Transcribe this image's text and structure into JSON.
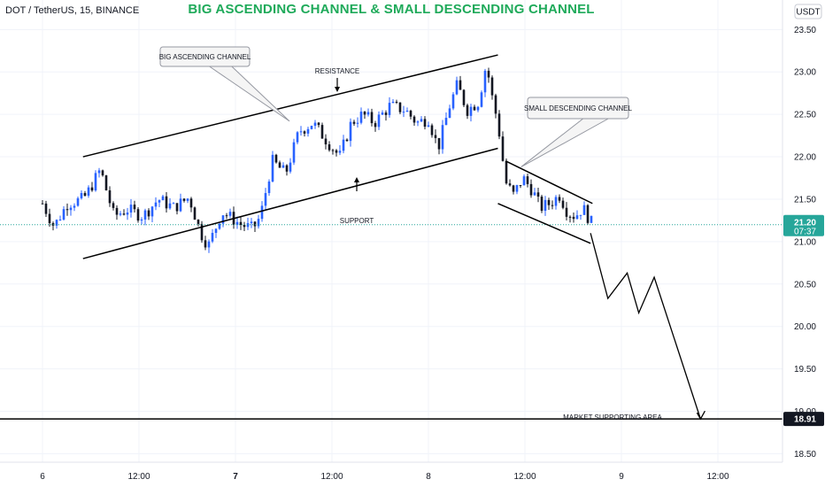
{
  "header": {
    "symbol": "DOT / TetherUS, 15, BINANCE",
    "title": "BIG ASCENDING CHANNEL & SMALL DESCENDING CHANNEL"
  },
  "colors": {
    "up": "#2962ff",
    "down": "#131722",
    "title": "#1faa5a",
    "last_price_line": "#26a69a",
    "last_price_bg": "#26a69a",
    "support_bg": "#131722"
  },
  "price_scale": {
    "currency": "USDT",
    "last_price": "21.20",
    "countdown": "07:37",
    "support_price": "18.91"
  },
  "annotations": {
    "big_channel": "BIG ASCENDING CHANNEL",
    "small_channel": "SMALL DESCENDING CHANNEL",
    "resistance": "RESISTANCE",
    "support": "SUPPORT",
    "market_support": "MARKET SUPPORTING AREA"
  },
  "chart_data": {
    "type": "candlestick",
    "y_ticks": [
      "23.50",
      "23.00",
      "22.50",
      "22.00",
      "21.50",
      "21.00",
      "20.50",
      "20.00",
      "19.50",
      "19.00",
      "18.50"
    ],
    "x_ticks": [
      "6",
      "12:00",
      "7",
      "12:00",
      "8",
      "12:00",
      "9",
      "12:00"
    ],
    "ylim": [
      18.4,
      23.66
    ],
    "grid": true,
    "last_price": 21.2,
    "market_support_level": 18.91,
    "big_ascending_channel": {
      "upper": [
        {
          "t": 0.21,
          "p": 22.0
        },
        {
          "t": 2.36,
          "p": 23.2
        }
      ],
      "lower": [
        {
          "t": 0.21,
          "p": 20.8
        },
        {
          "t": 2.36,
          "p": 22.1
        }
      ]
    },
    "small_descending_channel": {
      "upper": [
        {
          "t": 2.4,
          "p": 21.95
        },
        {
          "t": 2.85,
          "p": 21.45
        }
      ],
      "lower": [
        {
          "t": 2.36,
          "p": 21.45
        },
        {
          "t": 2.84,
          "p": 20.98
        }
      ]
    },
    "projection": [
      {
        "t": 2.84,
        "p": 21.1
      },
      {
        "t": 2.93,
        "p": 20.33
      },
      {
        "t": 3.03,
        "p": 20.63
      },
      {
        "t": 3.09,
        "p": 20.16
      },
      {
        "t": 3.17,
        "p": 20.58
      },
      {
        "t": 3.41,
        "p": 18.91
      }
    ],
    "price_path": [
      {
        "t": 0.0,
        "p": 21.45
      },
      {
        "t": 0.06,
        "p": 21.18
      },
      {
        "t": 0.13,
        "p": 21.45
      },
      {
        "t": 0.21,
        "p": 21.5
      },
      {
        "t": 0.24,
        "p": 21.6
      },
      {
        "t": 0.3,
        "p": 21.85
      },
      {
        "t": 0.37,
        "p": 21.3
      },
      {
        "t": 0.44,
        "p": 21.38
      },
      {
        "t": 0.52,
        "p": 21.3
      },
      {
        "t": 0.6,
        "p": 21.5
      },
      {
        "t": 0.68,
        "p": 21.4
      },
      {
        "t": 0.76,
        "p": 21.52
      },
      {
        "t": 0.82,
        "p": 21.1
      },
      {
        "t": 0.86,
        "p": 20.95
      },
      {
        "t": 0.93,
        "p": 21.35
      },
      {
        "t": 1.03,
        "p": 21.2
      },
      {
        "t": 1.09,
        "p": 21.15
      },
      {
        "t": 1.13,
        "p": 21.3
      },
      {
        "t": 1.19,
        "p": 21.95
      },
      {
        "t": 1.26,
        "p": 21.8
      },
      {
        "t": 1.33,
        "p": 22.3
      },
      {
        "t": 1.4,
        "p": 22.4
      },
      {
        "t": 1.47,
        "p": 22.2
      },
      {
        "t": 1.54,
        "p": 22.0
      },
      {
        "t": 1.6,
        "p": 22.4
      },
      {
        "t": 1.66,
        "p": 22.5
      },
      {
        "t": 1.72,
        "p": 22.4
      },
      {
        "t": 1.8,
        "p": 22.6
      },
      {
        "t": 1.88,
        "p": 22.55
      },
      {
        "t": 1.94,
        "p": 22.4
      },
      {
        "t": 2.0,
        "p": 22.45
      },
      {
        "t": 2.05,
        "p": 22.1
      },
      {
        "t": 2.11,
        "p": 22.6
      },
      {
        "t": 2.15,
        "p": 22.85
      },
      {
        "t": 2.2,
        "p": 22.55
      },
      {
        "t": 2.26,
        "p": 22.65
      },
      {
        "t": 2.3,
        "p": 23.1
      },
      {
        "t": 2.33,
        "p": 22.7
      },
      {
        "t": 2.36,
        "p": 22.4
      },
      {
        "t": 2.4,
        "p": 21.7
      },
      {
        "t": 2.44,
        "p": 21.55
      },
      {
        "t": 2.49,
        "p": 21.75
      },
      {
        "t": 2.54,
        "p": 21.6
      },
      {
        "t": 2.58,
        "p": 21.4
      },
      {
        "t": 2.63,
        "p": 21.45
      },
      {
        "t": 2.68,
        "p": 21.55
      },
      {
        "t": 2.72,
        "p": 21.35
      },
      {
        "t": 2.76,
        "p": 21.3
      },
      {
        "t": 2.8,
        "p": 21.4
      },
      {
        "t": 2.85,
        "p": 21.2
      }
    ]
  }
}
